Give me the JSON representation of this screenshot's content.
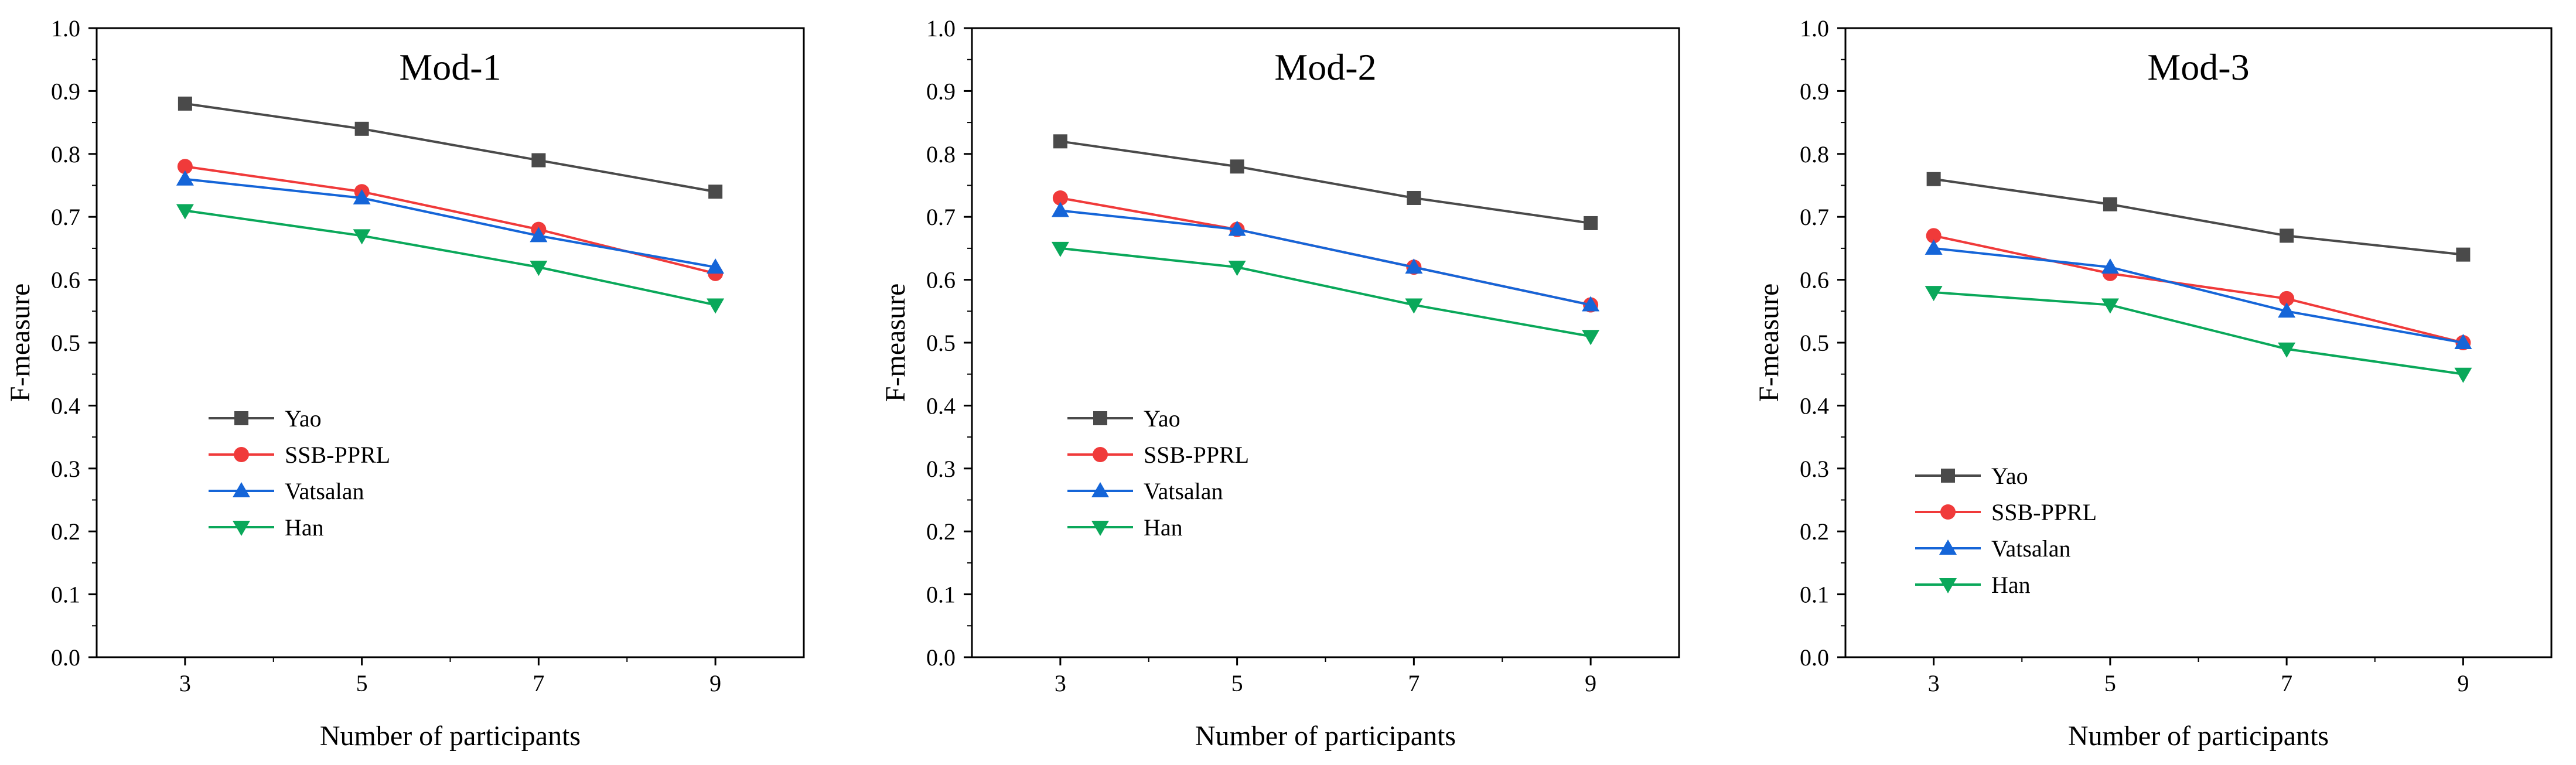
{
  "chart_data": [
    {
      "type": "line",
      "title": "Mod-1",
      "xlabel": "Number of participants",
      "ylabel": "F-measure",
      "categories": [
        3,
        5,
        7,
        9
      ],
      "xlim": [
        2,
        10
      ],
      "ylim": [
        0,
        1
      ],
      "yticks": [
        "0.0",
        "0.1",
        "0.2",
        "0.3",
        "0.4",
        "0.5",
        "0.6",
        "0.7",
        "0.8",
        "0.9",
        "1.0"
      ],
      "legend_placement": "center-left",
      "series": [
        {
          "name": "Yao",
          "values": [
            0.88,
            0.84,
            0.79,
            0.74
          ]
        },
        {
          "name": "SSB-PPRL",
          "values": [
            0.78,
            0.74,
            0.68,
            0.61
          ]
        },
        {
          "name": "Vatsalan",
          "values": [
            0.76,
            0.73,
            0.67,
            0.62
          ]
        },
        {
          "name": "Han",
          "values": [
            0.71,
            0.67,
            0.62,
            0.56
          ]
        }
      ]
    },
    {
      "type": "line",
      "title": "Mod-2",
      "xlabel": "Number of participants",
      "ylabel": "F-measure",
      "categories": [
        3,
        5,
        7,
        9
      ],
      "xlim": [
        2,
        10
      ],
      "ylim": [
        0,
        1
      ],
      "yticks": [
        "0.0",
        "0.1",
        "0.2",
        "0.3",
        "0.4",
        "0.5",
        "0.6",
        "0.7",
        "0.8",
        "0.9",
        "1.0"
      ],
      "legend_placement": "center-left",
      "series": [
        {
          "name": "Yao",
          "values": [
            0.82,
            0.78,
            0.73,
            0.69
          ]
        },
        {
          "name": "SSB-PPRL",
          "values": [
            0.73,
            0.68,
            0.62,
            0.56
          ]
        },
        {
          "name": "Vatsalan",
          "values": [
            0.71,
            0.68,
            0.62,
            0.56
          ]
        },
        {
          "name": "Han",
          "values": [
            0.65,
            0.62,
            0.56,
            0.51
          ]
        }
      ]
    },
    {
      "type": "line",
      "title": "Mod-3",
      "xlabel": "Number of participants",
      "ylabel": "F-measure",
      "categories": [
        3,
        5,
        7,
        9
      ],
      "xlim": [
        2,
        10
      ],
      "ylim": [
        0,
        1
      ],
      "yticks": [
        "0.0",
        "0.1",
        "0.2",
        "0.3",
        "0.4",
        "0.5",
        "0.6",
        "0.7",
        "0.8",
        "0.9",
        "1.0"
      ],
      "legend_placement": "lower-left",
      "series": [
        {
          "name": "Yao",
          "values": [
            0.76,
            0.72,
            0.67,
            0.64
          ]
        },
        {
          "name": "SSB-PPRL",
          "values": [
            0.67,
            0.61,
            0.57,
            0.5
          ]
        },
        {
          "name": "Vatsalan",
          "values": [
            0.65,
            0.62,
            0.55,
            0.5
          ]
        },
        {
          "name": "Han",
          "values": [
            0.58,
            0.56,
            0.49,
            0.45
          ]
        }
      ]
    }
  ],
  "series_styles": [
    {
      "name": "Yao",
      "color": "#4a4a4a",
      "marker": "square"
    },
    {
      "name": "SSB-PPRL",
      "color": "#f03a3a",
      "marker": "circle"
    },
    {
      "name": "Vatsalan",
      "color": "#1565d8",
      "marker": "triangle-up"
    },
    {
      "name": "Han",
      "color": "#0aa85a",
      "marker": "triangle-down"
    }
  ]
}
